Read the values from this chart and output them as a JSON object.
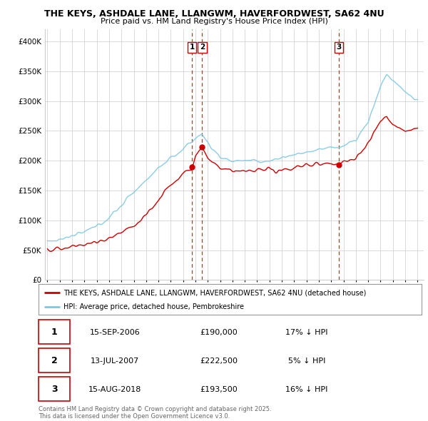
{
  "title_line1": "THE KEYS, ASHDALE LANE, LLANGWM, HAVERFORDWEST, SA62 4NU",
  "title_line2": "Price paid vs. HM Land Registry's House Price Index (HPI)",
  "ylabel_ticks": [
    "£0",
    "£50K",
    "£100K",
    "£150K",
    "£200K",
    "£250K",
    "£300K",
    "£350K",
    "£400K"
  ],
  "ytick_vals": [
    0,
    50000,
    100000,
    150000,
    200000,
    250000,
    300000,
    350000,
    400000
  ],
  "ylim": [
    0,
    420000
  ],
  "xlim_start": 1994.8,
  "xlim_end": 2025.5,
  "hpi_color": "#7ec8e3",
  "price_color": "#cc0000",
  "vline_color": "#cc0000",
  "transactions": [
    {
      "num": 1,
      "date_str": "15-SEP-2006",
      "price": 190000,
      "pct": "17%",
      "x": 2006.71
    },
    {
      "num": 2,
      "date_str": "13-JUL-2007",
      "price": 222500,
      "pct": "5%",
      "x": 2007.54
    },
    {
      "num": 3,
      "date_str": "15-AUG-2018",
      "price": 193500,
      "pct": "16%",
      "x": 2018.62
    }
  ],
  "legend_line1": "THE KEYS, ASHDALE LANE, LLANGWM, HAVERFORDWEST, SA62 4NU (detached house)",
  "legend_line2": "HPI: Average price, detached house, Pembrokeshire",
  "footnote": "Contains HM Land Registry data © Crown copyright and database right 2025.\nThis data is licensed under the Open Government Licence v3.0.",
  "table_rows": [
    [
      "1",
      "15-SEP-2006",
      "£190,000",
      "17% ↓ HPI"
    ],
    [
      "2",
      "13-JUL-2007",
      "£222,500",
      "5% ↓ HPI"
    ],
    [
      "3",
      "15-AUG-2018",
      "£193,500",
      "16% ↓ HPI"
    ]
  ],
  "bg_color": "#ffffff",
  "grid_color": "#cccccc",
  "hpi_anchors_x": [
    1995,
    1996,
    1997,
    1998,
    1999,
    2000,
    2001,
    2002,
    2003,
    2004,
    2005,
    2006,
    2007,
    2007.5,
    2008,
    2009,
    2010,
    2011,
    2012,
    2013,
    2014,
    2015,
    2016,
    2017,
    2018,
    2019,
    2020,
    2021,
    2022,
    2022.5,
    2023,
    2023.5,
    2024,
    2025
  ],
  "hpi_anchors_y": [
    65000,
    68000,
    73000,
    80000,
    90000,
    105000,
    125000,
    148000,
    168000,
    188000,
    205000,
    218000,
    238000,
    245000,
    230000,
    205000,
    200000,
    200000,
    198000,
    200000,
    205000,
    210000,
    215000,
    218000,
    222000,
    225000,
    235000,
    265000,
    325000,
    345000,
    335000,
    325000,
    315000,
    300000
  ],
  "price_anchors_x": [
    1995,
    1996,
    1997,
    1998,
    1999,
    2000,
    2001,
    2002,
    2003,
    2004,
    2005,
    2006,
    2006.71,
    2007,
    2007.54,
    2008,
    2009,
    2010,
    2011,
    2012,
    2013,
    2014,
    2015,
    2016,
    2017,
    2018,
    2018.62,
    2019,
    2020,
    2021,
    2022,
    2022.5,
    2023,
    2023.5,
    2024,
    2025
  ],
  "price_anchors_y": [
    50000,
    52000,
    55000,
    58000,
    62000,
    72000,
    82000,
    92000,
    110000,
    135000,
    160000,
    178000,
    190000,
    210000,
    222500,
    205000,
    185000,
    183000,
    182000,
    182000,
    183000,
    185000,
    188000,
    193000,
    195000,
    195000,
    193500,
    198000,
    205000,
    230000,
    265000,
    275000,
    260000,
    255000,
    248000,
    255000
  ]
}
